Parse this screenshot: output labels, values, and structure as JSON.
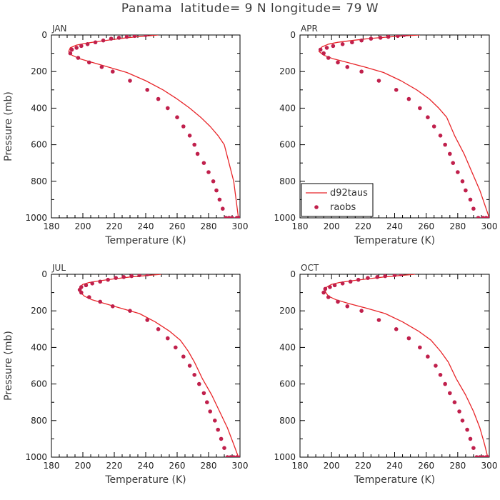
{
  "title": "Panama  latitude= 9 N longitude= 79 W",
  "colors": {
    "model_line": "#e8262a",
    "obs_point": "#c0204c",
    "axis": "#000000",
    "text": "#3a3a3a"
  },
  "chart_data": [
    {
      "type": "line",
      "panel_label": "JAN",
      "xlabel": "Temperature (K)",
      "ylabel": "Pressure (mb)",
      "xlim": [
        180,
        300
      ],
      "ylim": [
        1000,
        0
      ],
      "xticks": [
        "180",
        "200",
        "220",
        "240",
        "260",
        "280",
        "300"
      ],
      "yticks": [
        "0",
        "200",
        "400",
        "600",
        "800",
        "1000"
      ],
      "series": [
        {
          "name": "d92taus",
          "style": "line",
          "x": [
            248,
            238,
            228,
            219,
            210,
            202,
            196,
            192,
            191,
            193,
            198,
            206,
            216,
            228,
            240,
            251,
            260,
            268,
            275,
            281,
            286,
            290,
            293,
            296,
            299
          ],
          "y": [
            0,
            7,
            15,
            25,
            35,
            45,
            55,
            70,
            90,
            110,
            130,
            150,
            175,
            205,
            250,
            300,
            350,
            400,
            450,
            500,
            550,
            600,
            700,
            800,
            1000
          ]
        },
        {
          "name": "raobs",
          "style": "points",
          "x": [
            240,
            233,
            228,
            223,
            218,
            213,
            208,
            203,
            199,
            196,
            193,
            192,
            197,
            204,
            212,
            219,
            230,
            241,
            248,
            254,
            260,
            264,
            268,
            271,
            273,
            277,
            280,
            283,
            285,
            287,
            289,
            291,
            293,
            295,
            298,
            299
          ],
          "y": [
            0,
            5,
            10,
            15,
            20,
            30,
            40,
            50,
            60,
            70,
            80,
            100,
            125,
            150,
            175,
            200,
            250,
            300,
            350,
            400,
            450,
            500,
            550,
            600,
            650,
            700,
            750,
            800,
            850,
            900,
            950,
            1000,
            1000,
            1000,
            1000,
            1000
          ]
        }
      ]
    },
    {
      "type": "line",
      "panel_label": "APR",
      "xlabel": "Temperature (K)",
      "ylabel": "",
      "xlim": [
        180,
        300
      ],
      "ylim": [
        1000,
        0
      ],
      "xticks": [
        "180",
        "200",
        "220",
        "240",
        "260",
        "280",
        "300"
      ],
      "yticks": [
        "0",
        "200",
        "400",
        "600",
        "800",
        "1000"
      ],
      "legend": {
        "position": "lower-left",
        "entries": [
          "d92taus",
          "raobs"
        ]
      },
      "series": [
        {
          "name": "d92taus",
          "style": "line",
          "x": [
            256,
            245,
            234,
            223,
            213,
            204,
            198,
            194,
            192,
            195,
            201,
            210,
            221,
            233,
            244,
            254,
            262,
            268,
            273,
            278,
            284,
            289,
            294,
            298,
            300
          ],
          "y": [
            0,
            5,
            12,
            20,
            30,
            40,
            50,
            65,
            90,
            110,
            130,
            150,
            175,
            205,
            250,
            300,
            350,
            400,
            450,
            550,
            650,
            750,
            850,
            950,
            1000
          ]
        },
        {
          "name": "raobs",
          "style": "points",
          "x": [
            246,
            242,
            236,
            231,
            225,
            219,
            213,
            207,
            201,
            197,
            193,
            195,
            198,
            204,
            210,
            219,
            230,
            241,
            249,
            256,
            261,
            265,
            269,
            272,
            275,
            277,
            280,
            283,
            285,
            288,
            290,
            293,
            296,
            298,
            300,
            300
          ],
          "y": [
            0,
            5,
            10,
            15,
            20,
            30,
            40,
            50,
            60,
            70,
            80,
            100,
            125,
            150,
            175,
            200,
            250,
            300,
            350,
            400,
            450,
            500,
            550,
            600,
            650,
            700,
            750,
            800,
            850,
            900,
            950,
            1000,
            1000,
            1000,
            1000,
            1000
          ]
        }
      ]
    },
    {
      "type": "line",
      "panel_label": "JUL",
      "xlabel": "Temperature (K)",
      "ylabel": "Pressure (mb)",
      "xlim": [
        180,
        300
      ],
      "ylim": [
        1000,
        0
      ],
      "xticks": [
        "180",
        "200",
        "220",
        "240",
        "260",
        "280",
        "300"
      ],
      "yticks": [
        "0",
        "200",
        "400",
        "600",
        "800",
        "1000"
      ],
      "series": [
        {
          "name": "d92taus",
          "style": "line",
          "x": [
            250,
            240,
            230,
            220,
            211,
            204,
            200,
            198,
            198,
            201,
            206,
            214,
            224,
            236,
            246,
            255,
            262,
            267,
            271,
            276,
            282,
            287,
            292,
            296,
            299
          ],
          "y": [
            0,
            7,
            15,
            25,
            35,
            45,
            55,
            70,
            95,
            120,
            140,
            160,
            185,
            215,
            260,
            310,
            360,
            420,
            480,
            570,
            660,
            750,
            840,
            930,
            1000
          ]
        },
        {
          "name": "raobs",
          "style": "points",
          "x": [
            241,
            236,
            231,
            226,
            221,
            216,
            211,
            206,
            202,
            199,
            198,
            199,
            204,
            211,
            219,
            230,
            241,
            248,
            254,
            259,
            264,
            268,
            271,
            274,
            277,
            279,
            281,
            284,
            286,
            288,
            290,
            292,
            294,
            296,
            298,
            300
          ],
          "y": [
            0,
            5,
            10,
            15,
            20,
            30,
            40,
            50,
            60,
            70,
            85,
            100,
            125,
            150,
            175,
            200,
            250,
            300,
            350,
            400,
            450,
            500,
            550,
            600,
            650,
            700,
            750,
            800,
            850,
            900,
            950,
            1000,
            1000,
            1000,
            1000,
            1000
          ]
        }
      ]
    },
    {
      "type": "line",
      "panel_label": "OCT",
      "xlabel": "Temperature (K)",
      "ylabel": "",
      "xlim": [
        180,
        300
      ],
      "ylim": [
        1000,
        0
      ],
      "xticks": [
        "180",
        "200",
        "220",
        "240",
        "260",
        "280",
        "300"
      ],
      "yticks": [
        "0",
        "200",
        "400",
        "600",
        "800",
        "1000"
      ],
      "series": [
        {
          "name": "d92taus",
          "style": "line",
          "x": [
            253,
            243,
            233,
            223,
            213,
            205,
            200,
            197,
            196,
            198,
            203,
            211,
            222,
            234,
            245,
            255,
            263,
            269,
            274,
            279,
            285,
            290,
            294,
            297,
            299
          ],
          "y": [
            0,
            7,
            15,
            25,
            35,
            45,
            55,
            70,
            95,
            120,
            140,
            160,
            185,
            215,
            260,
            310,
            360,
            420,
            480,
            570,
            660,
            750,
            840,
            930,
            1000
          ]
        },
        {
          "name": "raobs",
          "style": "points",
          "x": [
            244,
            240,
            234,
            229,
            223,
            217,
            212,
            207,
            202,
            199,
            196,
            195,
            198,
            204,
            210,
            219,
            230,
            241,
            249,
            256,
            261,
            266,
            269,
            272,
            275,
            278,
            281,
            283,
            286,
            288,
            290,
            292,
            294,
            296,
            298,
            299
          ],
          "y": [
            0,
            5,
            10,
            15,
            20,
            30,
            40,
            50,
            60,
            70,
            80,
            100,
            125,
            150,
            175,
            200,
            250,
            300,
            350,
            400,
            450,
            500,
            550,
            600,
            650,
            700,
            750,
            800,
            850,
            900,
            950,
            1000,
            1000,
            1000,
            1000,
            1000
          ]
        }
      ]
    }
  ]
}
